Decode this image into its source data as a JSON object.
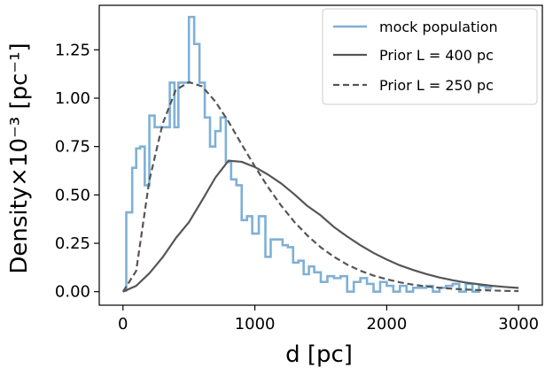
{
  "chart_data": {
    "type": "line",
    "xlabel": "d [pc]",
    "ylabel": "Density×10⁻³ [pc⁻¹]",
    "xlim": [
      -180,
      3180
    ],
    "ylim": [
      -0.07,
      1.48
    ],
    "x_ticks": [
      0,
      1000,
      2000,
      3000
    ],
    "y_ticks": [
      0.0,
      0.25,
      0.5,
      0.75,
      1.0,
      1.25
    ],
    "x_tick_labels": [
      "0",
      "1000",
      "2000",
      "3000"
    ],
    "y_tick_labels": [
      "0.00",
      "0.25",
      "0.50",
      "0.75",
      "1.00",
      "1.25"
    ],
    "grid": false,
    "legend_position": "top-right",
    "series": [
      {
        "name": "mock population",
        "kind": "step-histogram",
        "color": "#7fb0d6",
        "bin_edges": [
          25,
          70,
          100,
          130,
          165,
          200,
          240,
          280,
          320,
          355,
          390,
          420,
          460,
          500,
          540,
          580,
          620,
          660,
          700,
          740,
          780,
          820,
          860,
          900,
          940,
          980,
          1030,
          1080,
          1120,
          1170,
          1210,
          1250,
          1290,
          1330,
          1370,
          1410,
          1450,
          1500,
          1550,
          1600,
          1650,
          1700,
          1750,
          1800,
          1850,
          1900,
          1950,
          2000,
          2050,
          2100,
          2150,
          2200,
          2250,
          2300,
          2350,
          2400,
          2450,
          2500,
          2550,
          2600,
          2650,
          2700,
          2750,
          2800
        ],
        "values": [
          0.41,
          0.64,
          0.74,
          0.75,
          0.55,
          0.91,
          0.85,
          0.85,
          0.85,
          1.08,
          0.85,
          1.08,
          1.08,
          1.42,
          1.28,
          1.08,
          0.9,
          0.75,
          0.83,
          0.9,
          0.67,
          0.58,
          0.55,
          0.37,
          0.39,
          0.3,
          0.39,
          0.18,
          0.27,
          0.27,
          0.24,
          0.23,
          0.15,
          0.16,
          0.09,
          0.13,
          0.1,
          0.05,
          0.08,
          0.07,
          0.08,
          0.0,
          0.05,
          0.07,
          0.04,
          0.0,
          0.05,
          0.03,
          0.0,
          0.03,
          0.0,
          0.02,
          0.02,
          0.03,
          0.0,
          0.02,
          0.03,
          0.04,
          0.0,
          0.04,
          0.0,
          0.03,
          0.02
        ]
      },
      {
        "name": "Prior L = 400 pc",
        "kind": "line",
        "color": "#555555",
        "dash": "solid",
        "L": 400,
        "x": [
          0,
          100,
          200,
          300,
          400,
          500,
          600,
          700,
          800,
          900,
          1000,
          1100,
          1200,
          1300,
          1400,
          1500,
          1600,
          1700,
          1800,
          1900,
          2000,
          2100,
          2200,
          2300,
          2400,
          2500,
          2600,
          2700,
          2800,
          2900,
          3000
        ],
        "y": [
          0.0,
          0.03,
          0.095,
          0.177,
          0.276,
          0.359,
          0.472,
          0.589,
          0.677,
          0.671,
          0.644,
          0.605,
          0.559,
          0.503,
          0.442,
          0.394,
          0.334,
          0.285,
          0.24,
          0.2,
          0.166,
          0.136,
          0.112,
          0.091,
          0.073,
          0.059,
          0.047,
          0.038,
          0.03,
          0.024,
          0.019
        ]
      },
      {
        "name": "Prior L = 250 pc",
        "kind": "line",
        "color": "#555555",
        "dash": "dashed",
        "L": 250,
        "x": [
          0,
          100,
          200,
          300,
          400,
          500,
          600,
          700,
          800,
          900,
          1000,
          1100,
          1200,
          1300,
          1400,
          1500,
          1600,
          1700,
          1800,
          1900,
          2000,
          2100,
          2200,
          2300,
          2400,
          2500,
          2600,
          2700,
          2800,
          2900,
          3000
        ],
        "y": [
          0.0,
          0.107,
          0.576,
          0.866,
          1.042,
          1.083,
          1.061,
          0.983,
          0.879,
          0.761,
          0.647,
          0.54,
          0.444,
          0.36,
          0.289,
          0.229,
          0.18,
          0.14,
          0.108,
          0.083,
          0.064,
          0.048,
          0.036,
          0.027,
          0.02,
          0.015,
          0.011,
          0.008,
          0.006,
          0.004,
          0.003
        ]
      }
    ]
  }
}
